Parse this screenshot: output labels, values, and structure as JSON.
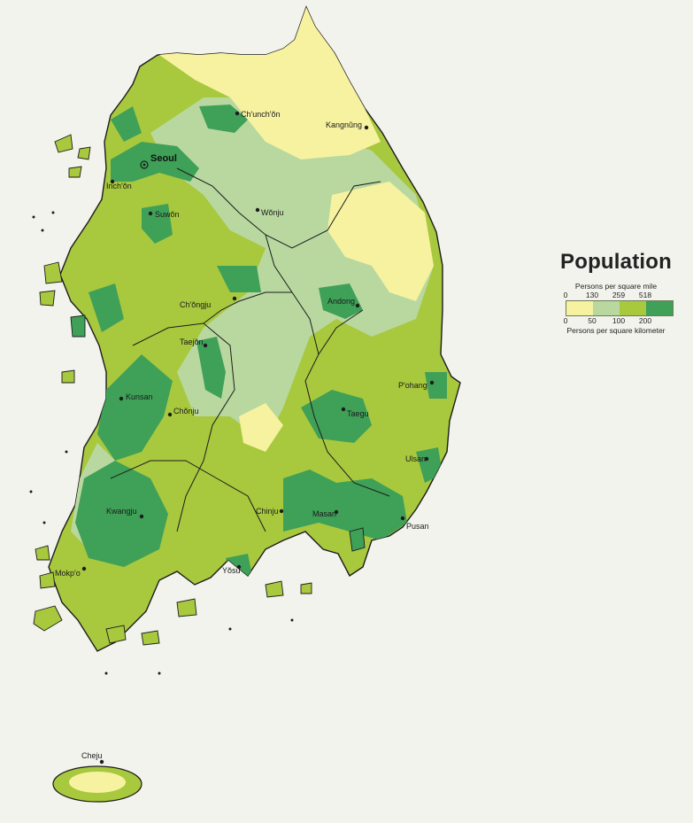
{
  "title": "Population",
  "legend": {
    "units_top": "Persons per square mile",
    "units_bottom": "Persons per square kilometer",
    "ticks_top": [
      "0",
      "130",
      "259",
      "518"
    ],
    "ticks_bottom": [
      "0",
      "50",
      "100",
      "200"
    ],
    "classes": [
      {
        "color": "#f7f2a0"
      },
      {
        "color": "#b8d8a0"
      },
      {
        "color": "#a8c83e"
      },
      {
        "color": "#3fa058"
      }
    ]
  },
  "colors": {
    "background": "#f3f3ee",
    "lightest": "#f7f2a0",
    "light": "#b8d8a0",
    "medium": "#a8c83e",
    "dense": "#3fa058",
    "border": "#1c1c1c"
  },
  "cities": {
    "seoul": "Seoul",
    "chunchon": "Ch'unch'ŏn",
    "kangnung": "Kangnŭng",
    "inchon": "Inch'ŏn",
    "suwon": "Suwŏn",
    "wonju": "Wŏnju",
    "chongju": "Ch'ŏngju",
    "andong": "Andong",
    "taejon": "Taejŏn",
    "pohang": "P'ohang",
    "kunsan": "Kunsan",
    "chonju": "Chŏnju",
    "taegu": "Taegu",
    "ulsan": "Ulsan",
    "kwangju": "Kwangju",
    "chinju": "Chinju",
    "masan": "Masan",
    "pusan": "Pusan",
    "mokpo": "Mokp'o",
    "yosu": "Yŏsu",
    "cheju": "Cheju"
  }
}
